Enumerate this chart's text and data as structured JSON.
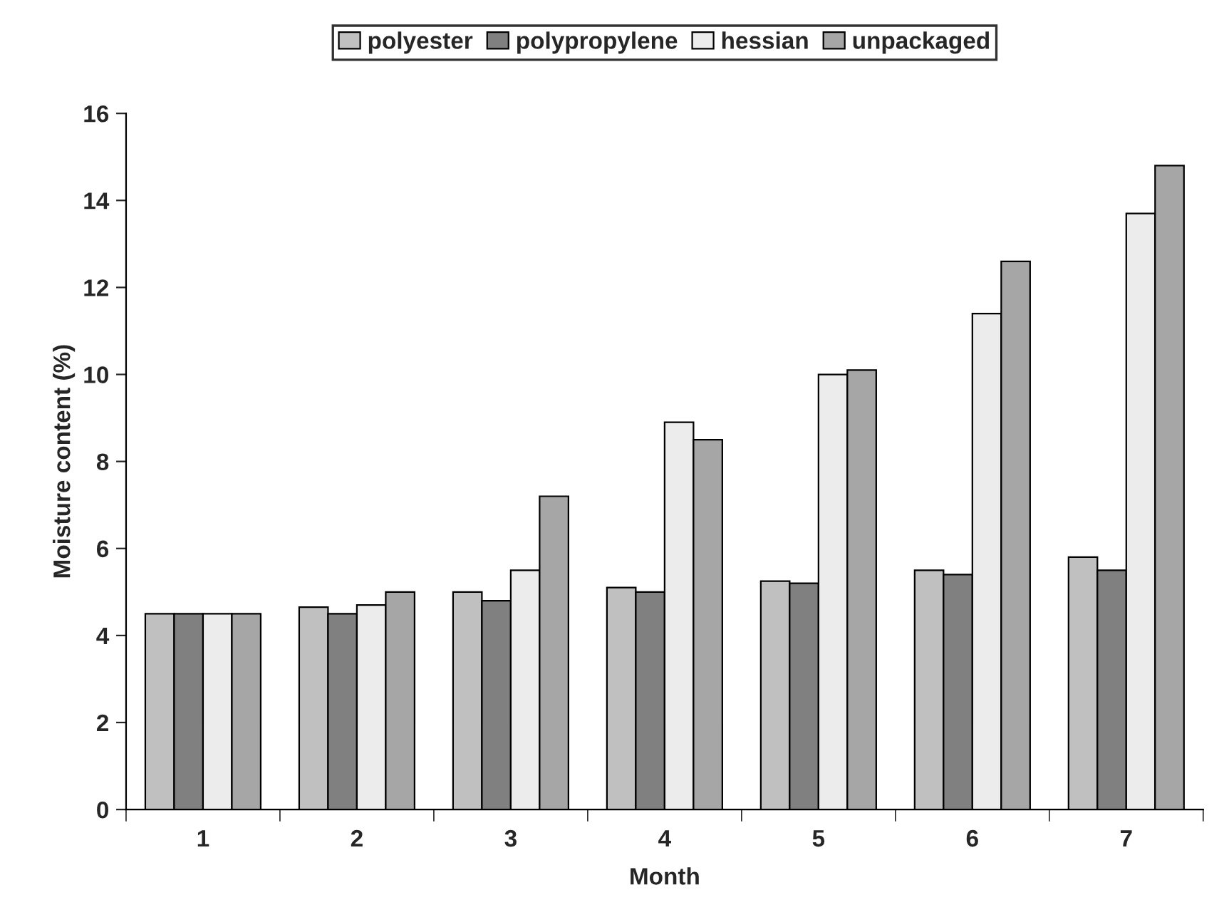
{
  "chart_data": {
    "type": "bar",
    "xlabel": "Month",
    "ylabel": "Moisture content (%)",
    "categories": [
      "1",
      "2",
      "3",
      "4",
      "5",
      "6",
      "7"
    ],
    "series": [
      {
        "name": "polyester",
        "color": "#c0c0c0",
        "values": [
          4.5,
          4.65,
          5.0,
          5.1,
          5.25,
          5.5,
          5.8
        ]
      },
      {
        "name": "polypropylene",
        "color": "#808080",
        "values": [
          4.5,
          4.5,
          4.8,
          5.0,
          5.2,
          5.4,
          5.5
        ]
      },
      {
        "name": "hessian",
        "color": "#ececec",
        "values": [
          4.5,
          4.7,
          5.5,
          8.9,
          10.0,
          11.4,
          13.7
        ]
      },
      {
        "name": "unpackaged",
        "color": "#a6a6a6",
        "values": [
          4.5,
          5.0,
          7.2,
          8.5,
          10.1,
          12.6,
          14.8
        ]
      }
    ],
    "ylim": [
      0,
      16
    ],
    "yticks": [
      0,
      2,
      4,
      6,
      8,
      10,
      12,
      14,
      16
    ],
    "grid": false,
    "legend": "top"
  }
}
